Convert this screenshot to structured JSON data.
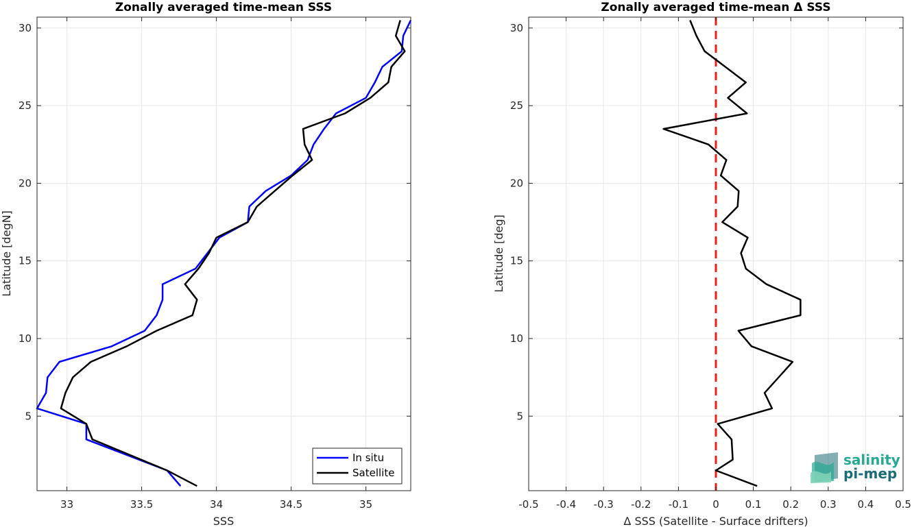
{
  "chart_data": [
    {
      "type": "line",
      "title": "Zonally averaged time-mean SSS",
      "xlabel": "SSS",
      "ylabel": "Latitude [degN]",
      "xlim": [
        32.8,
        35.3
      ],
      "ylim": [
        0.2,
        30.7
      ],
      "xticks": [
        33,
        33.5,
        34,
        34.5,
        35
      ],
      "xtick_labels": [
        "33",
        "33.5",
        "34",
        "34.5",
        "35"
      ],
      "yticks": [
        5,
        10,
        15,
        20,
        25,
        30
      ],
      "ytick_labels": [
        "5",
        "10",
        "15",
        "20",
        "25",
        "30"
      ],
      "grid": true,
      "legend": "bottom-right",
      "series": [
        {
          "name": "In situ",
          "color": "#0000ff",
          "x": [
            33.76,
            33.67,
            33.13,
            33.13,
            32.8,
            32.86,
            32.87,
            32.95,
            33.3,
            33.52,
            33.6,
            33.64,
            33.64,
            33.86,
            33.94,
            34.02,
            34.21,
            34.22,
            34.33,
            34.5,
            34.61,
            34.65,
            34.72,
            34.8,
            35.0,
            35.06,
            35.11,
            35.24,
            35.25,
            35.3
          ],
          "y": [
            0.5,
            1.5,
            3.5,
            4.5,
            5.5,
            6.5,
            7.5,
            8.5,
            9.5,
            10.5,
            11.5,
            12.5,
            13.5,
            14.5,
            15.5,
            16.5,
            17.5,
            18.5,
            19.5,
            20.5,
            21.5,
            22.5,
            23.5,
            24.5,
            25.5,
            26.5,
            27.5,
            28.5,
            29.5,
            30.5
          ]
        },
        {
          "name": "Satellite",
          "color": "#000000",
          "x": [
            33.87,
            33.67,
            33.17,
            33.13,
            32.96,
            32.99,
            33.04,
            33.16,
            33.4,
            33.6,
            33.84,
            33.87,
            33.79,
            33.88,
            33.95,
            34.0,
            34.21,
            34.27,
            34.39,
            34.51,
            34.64,
            34.59,
            34.58,
            34.86,
            35.03,
            35.15,
            35.17,
            35.26,
            35.2,
            35.23
          ],
          "y": [
            0.5,
            1.5,
            3.5,
            4.5,
            5.5,
            6.5,
            7.5,
            8.5,
            9.5,
            10.5,
            11.5,
            12.5,
            13.5,
            14.5,
            15.5,
            16.5,
            17.5,
            18.5,
            19.5,
            20.5,
            21.5,
            22.5,
            23.5,
            24.5,
            25.5,
            26.5,
            27.5,
            28.5,
            29.5,
            30.5
          ]
        }
      ]
    },
    {
      "type": "line",
      "title": "Zonally averaged time-mean Δ SSS",
      "xlabel": "Δ SSS (Satellite - Surface drifters)",
      "ylabel": "Latitude [deg]",
      "xlim": [
        -0.5,
        0.5
      ],
      "ylim": [
        0.2,
        30.7
      ],
      "xticks": [
        -0.5,
        -0.4,
        -0.3,
        -0.2,
        -0.1,
        0,
        0.1,
        0.2,
        0.3,
        0.4,
        0.5
      ],
      "xtick_labels": [
        "-0.5",
        "-0.4",
        "-0.3",
        "-0.2",
        "-0.1",
        "0",
        "0.1",
        "0.2",
        "0.3",
        "0.4",
        "0.5"
      ],
      "yticks": [
        5,
        10,
        15,
        20,
        25,
        30
      ],
      "ytick_labels": [
        "5",
        "10",
        "15",
        "20",
        "25",
        "30"
      ],
      "grid": true,
      "reference_line": {
        "x": 0,
        "color": "#e8201c",
        "style": "dashed"
      },
      "series": [
        {
          "color": "#000000",
          "x": [
            0.11,
            0.0,
            0.045,
            0.042,
            0.005,
            0.15,
            0.13,
            0.205,
            0.095,
            0.06,
            0.226,
            0.226,
            0.135,
            0.08,
            0.067,
            0.085,
            0.017,
            0.058,
            0.061,
            0.013,
            0.028,
            -0.02,
            -0.14,
            0.083,
            0.032,
            0.08,
            0.025,
            -0.03,
            -0.052,
            -0.069
          ],
          "y": [
            0.5,
            1.5,
            2.2,
            3.5,
            4.5,
            5.5,
            6.5,
            8.5,
            9.5,
            10.5,
            11.5,
            12.5,
            13.5,
            14.5,
            15.5,
            16.5,
            17.5,
            18.5,
            19.5,
            20.5,
            21.5,
            22.5,
            23.5,
            24.5,
            25.5,
            26.5,
            27.5,
            28.5,
            29.5,
            30.5
          ]
        }
      ]
    }
  ],
  "logo": {
    "line1": "salinity",
    "line2": "pi-mep",
    "colors": [
      "#25a992",
      "#1a6e73",
      "#7fd1b9"
    ]
  }
}
